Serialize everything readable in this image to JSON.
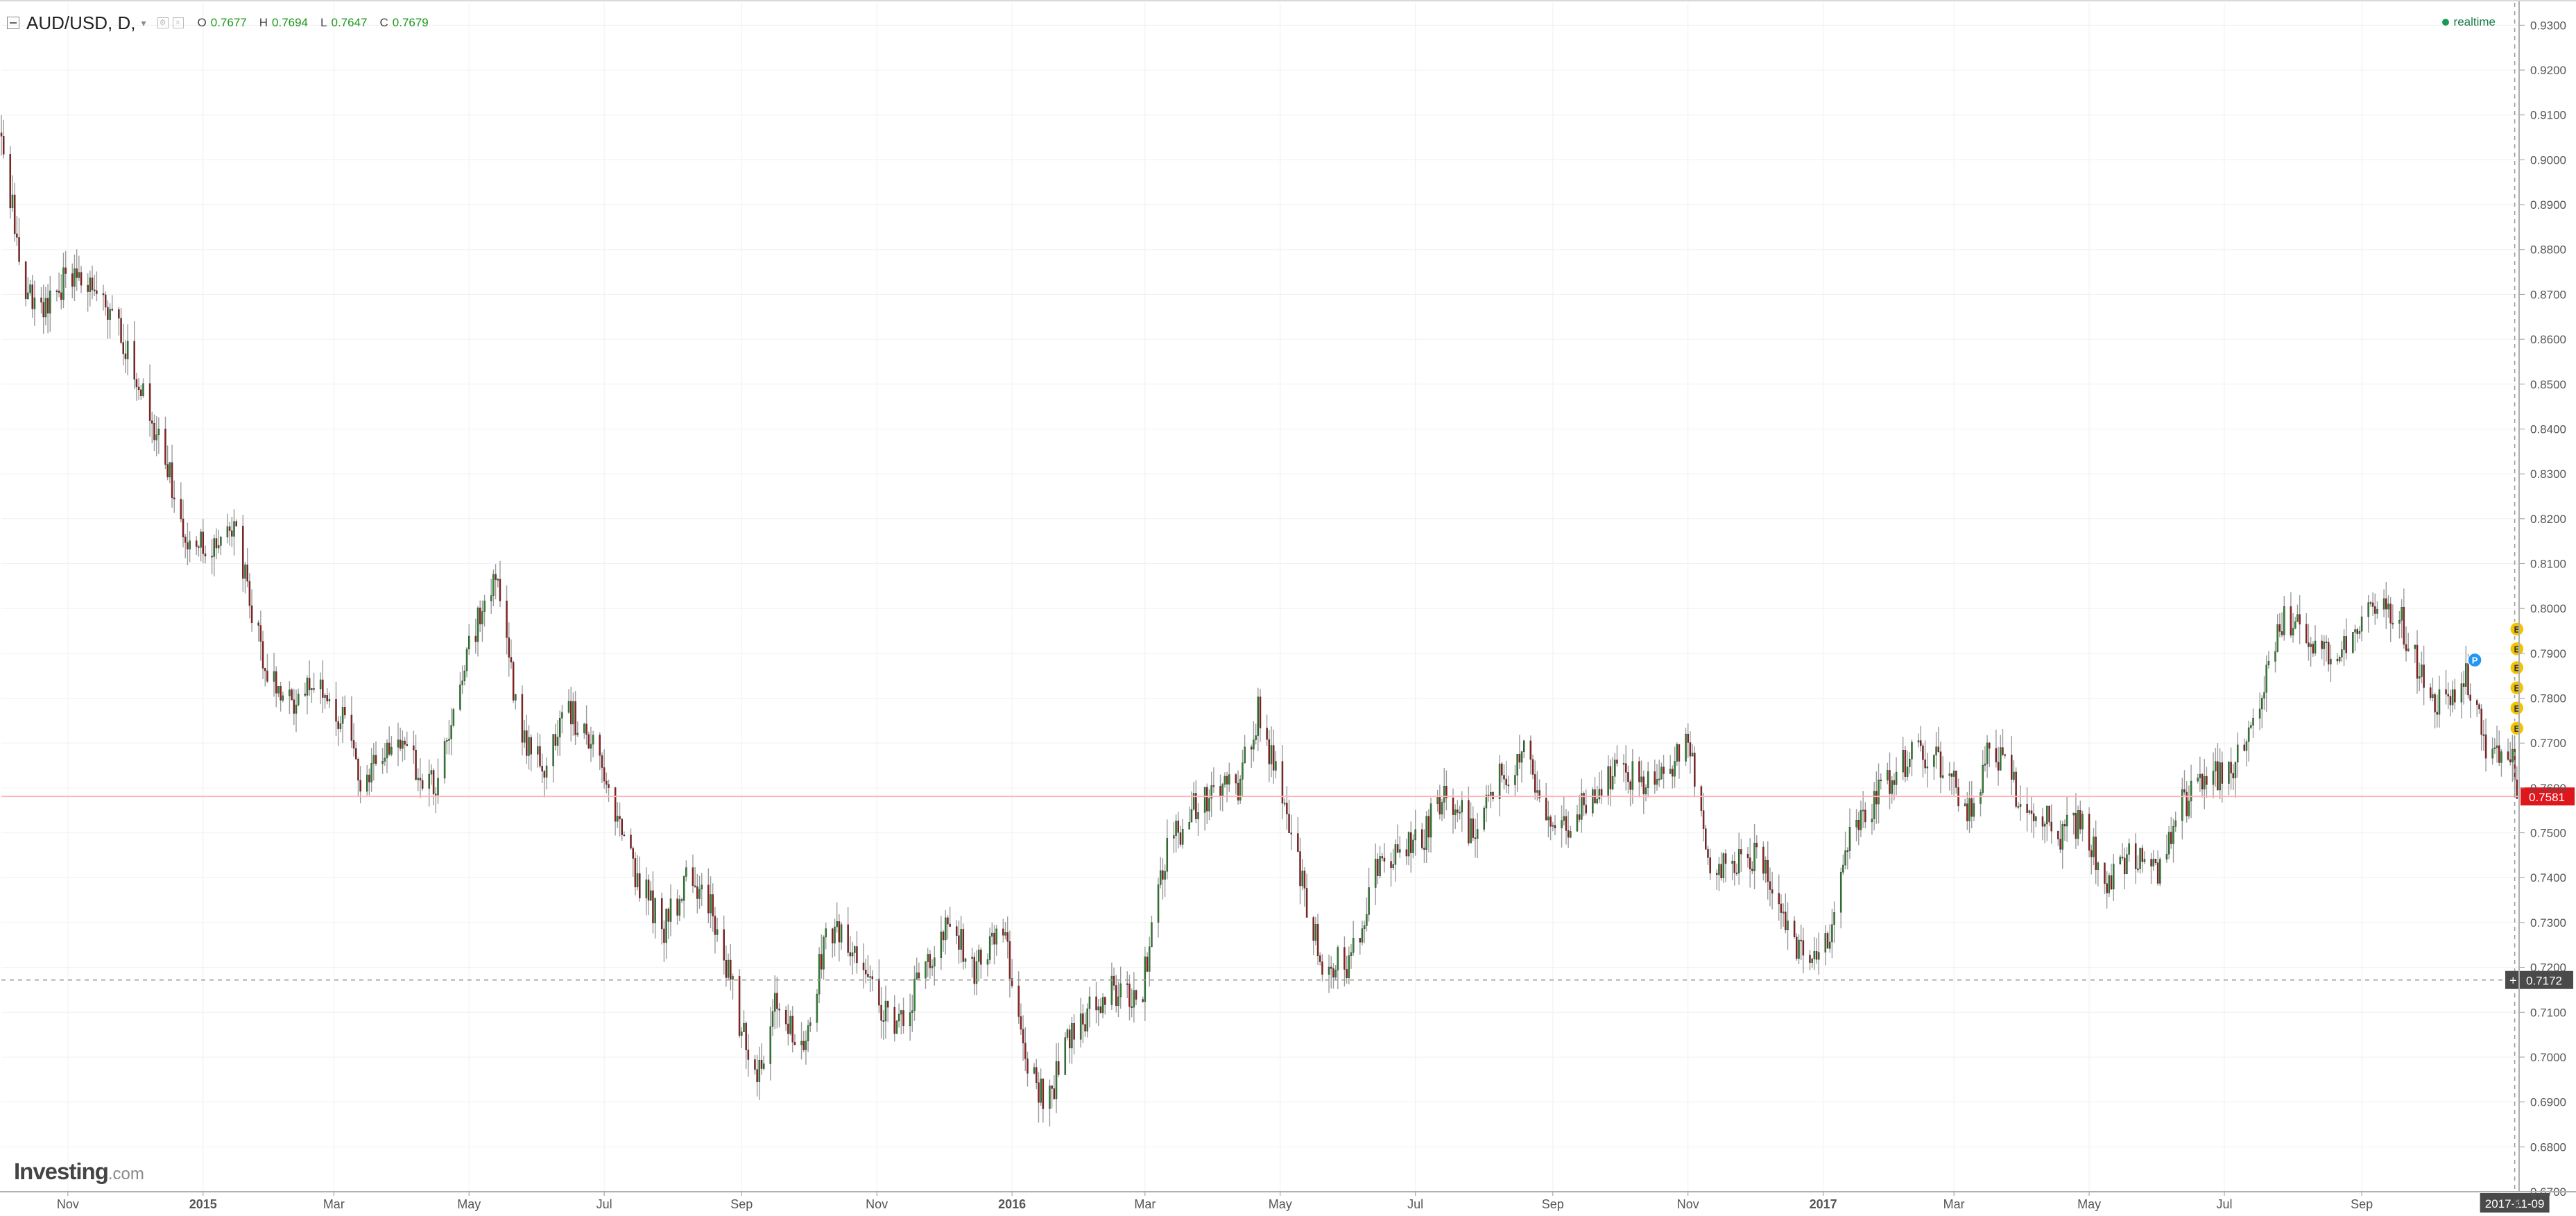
{
  "legend": {
    "symbol": "AUD/USD, D,",
    "dropdown_arrow": "▾",
    "open_key": "O",
    "open": "0.7677",
    "high_key": "H",
    "high": "0.7694",
    "low_key": "L",
    "low": "0.7647",
    "close_key": "C",
    "close": "0.7679"
  },
  "realtime_label": "realtime",
  "logo": {
    "brand": "Investing",
    "suffix": ".com"
  },
  "colors": {
    "up": "#2a8c2a",
    "down": "#a11818",
    "wick": "#9a9a9a",
    "grid": "#f0f0f0",
    "last_price_line": "#ffb3b3",
    "last_price_bg": "#e0161d",
    "crosshair_bg": "#4a4a4a",
    "earnings_badge": "#f2c300",
    "event_badge": "#2196f3"
  },
  "chart_data": {
    "type": "candlestick",
    "symbol": "AUD/USD",
    "interval": "D",
    "y_axis": {
      "range": [
        0.67,
        0.935
      ],
      "ticks": [
        "0.9300",
        "0.9200",
        "0.9100",
        "0.9000",
        "0.8900",
        "0.8800",
        "0.8700",
        "0.8600",
        "0.8500",
        "0.8400",
        "0.8300",
        "0.8200",
        "0.8100",
        "0.8000",
        "0.7900",
        "0.7800",
        "0.7700",
        "0.7600",
        "0.7500",
        "0.7400",
        "0.7300",
        "0.7200",
        "0.7100",
        "0.7000",
        "0.6900",
        "0.6800",
        "0.6700"
      ]
    },
    "x_axis": {
      "range": [
        "2014-10-02",
        "2017-11-11"
      ],
      "ticks": [
        {
          "date": "2014-11-01",
          "label": "Nov",
          "bold": false
        },
        {
          "date": "2015-01-01",
          "label": "2015",
          "bold": true
        },
        {
          "date": "2015-03-01",
          "label": "Mar",
          "bold": false
        },
        {
          "date": "2015-05-01",
          "label": "May",
          "bold": false
        },
        {
          "date": "2015-07-01",
          "label": "Jul",
          "bold": false
        },
        {
          "date": "2015-09-01",
          "label": "Sep",
          "bold": false
        },
        {
          "date": "2015-11-01",
          "label": "Nov",
          "bold": false
        },
        {
          "date": "2016-01-01",
          "label": "2016",
          "bold": true
        },
        {
          "date": "2016-03-01",
          "label": "Mar",
          "bold": false
        },
        {
          "date": "2016-05-01",
          "label": "May",
          "bold": false
        },
        {
          "date": "2016-07-01",
          "label": "Jul",
          "bold": false
        },
        {
          "date": "2016-09-01",
          "label": "Sep",
          "bold": false
        },
        {
          "date": "2016-11-01",
          "label": "Nov",
          "bold": false
        },
        {
          "date": "2017-01-01",
          "label": "2017",
          "bold": true
        },
        {
          "date": "2017-03-01",
          "label": "Mar",
          "bold": false
        },
        {
          "date": "2017-05-01",
          "label": "May",
          "bold": false
        },
        {
          "date": "2017-07-01",
          "label": "Jul",
          "bold": false
        },
        {
          "date": "2017-09-01",
          "label": "Sep",
          "bold": false
        }
      ],
      "trailing_tick": "8"
    },
    "price_path": [
      [
        "2014-10-02",
        0.906
      ],
      [
        "2014-10-12",
        0.873
      ],
      [
        "2014-10-22",
        0.866
      ],
      [
        "2014-11-02",
        0.875
      ],
      [
        "2014-11-12",
        0.87
      ],
      [
        "2014-11-22",
        0.866
      ],
      [
        "2014-12-02",
        0.852
      ],
      [
        "2014-12-12",
        0.838
      ],
      [
        "2014-12-25",
        0.815
      ],
      [
        "2015-01-05",
        0.814
      ],
      [
        "2015-01-15",
        0.82
      ],
      [
        "2015-01-25",
        0.795
      ],
      [
        "2015-02-05",
        0.778
      ],
      [
        "2015-02-15",
        0.781
      ],
      [
        "2015-02-25",
        0.782
      ],
      [
        "2015-03-05",
        0.775
      ],
      [
        "2015-03-15",
        0.76
      ],
      [
        "2015-03-25",
        0.771
      ],
      [
        "2015-04-05",
        0.766
      ],
      [
        "2015-04-15",
        0.76
      ],
      [
        "2015-04-25",
        0.779
      ],
      [
        "2015-05-05",
        0.798
      ],
      [
        "2015-05-14",
        0.806
      ],
      [
        "2015-05-25",
        0.77
      ],
      [
        "2015-06-05",
        0.765
      ],
      [
        "2015-06-15",
        0.777
      ],
      [
        "2015-06-25",
        0.77
      ],
      [
        "2015-07-05",
        0.755
      ],
      [
        "2015-07-15",
        0.741
      ],
      [
        "2015-07-28",
        0.729
      ],
      [
        "2015-08-08",
        0.74
      ],
      [
        "2015-08-18",
        0.735
      ],
      [
        "2015-09-01",
        0.706
      ],
      [
        "2015-09-08",
        0.697
      ],
      [
        "2015-09-18",
        0.714
      ],
      [
        "2015-09-28",
        0.7
      ],
      [
        "2015-10-10",
        0.73
      ],
      [
        "2015-10-20",
        0.725
      ],
      [
        "2015-11-01",
        0.713
      ],
      [
        "2015-11-10",
        0.705
      ],
      [
        "2015-11-22",
        0.72
      ],
      [
        "2015-12-05",
        0.73
      ],
      [
        "2015-12-15",
        0.72
      ],
      [
        "2015-12-28",
        0.73
      ],
      [
        "2016-01-07",
        0.7
      ],
      [
        "2016-01-17",
        0.689
      ],
      [
        "2016-01-27",
        0.705
      ],
      [
        "2016-02-07",
        0.712
      ],
      [
        "2016-02-17",
        0.715
      ],
      [
        "2016-02-28",
        0.713
      ],
      [
        "2016-03-10",
        0.745
      ],
      [
        "2016-03-22",
        0.755
      ],
      [
        "2016-04-02",
        0.76
      ],
      [
        "2016-04-12",
        0.76
      ],
      [
        "2016-04-21",
        0.777
      ],
      [
        "2016-05-01",
        0.76
      ],
      [
        "2016-05-10",
        0.74
      ],
      [
        "2016-05-20",
        0.722
      ],
      [
        "2016-06-01",
        0.72
      ],
      [
        "2016-06-12",
        0.74
      ],
      [
        "2016-06-24",
        0.745
      ],
      [
        "2016-07-05",
        0.75
      ],
      [
        "2016-07-15",
        0.76
      ],
      [
        "2016-07-26",
        0.75
      ],
      [
        "2016-08-08",
        0.762
      ],
      [
        "2016-08-18",
        0.768
      ],
      [
        "2016-08-30",
        0.755
      ],
      [
        "2016-09-10",
        0.752
      ],
      [
        "2016-09-20",
        0.76
      ],
      [
        "2016-10-01",
        0.765
      ],
      [
        "2016-10-12",
        0.76
      ],
      [
        "2016-10-22",
        0.762
      ],
      [
        "2016-11-01",
        0.77
      ],
      [
        "2016-11-10",
        0.745
      ],
      [
        "2016-11-20",
        0.742
      ],
      [
        "2016-12-01",
        0.745
      ],
      [
        "2016-12-12",
        0.735
      ],
      [
        "2016-12-24",
        0.72
      ],
      [
        "2017-01-03",
        0.725
      ],
      [
        "2017-01-13",
        0.75
      ],
      [
        "2017-01-25",
        0.758
      ],
      [
        "2017-02-05",
        0.765
      ],
      [
        "2017-02-15",
        0.768
      ],
      [
        "2017-02-25",
        0.765
      ],
      [
        "2017-03-08",
        0.755
      ],
      [
        "2017-03-18",
        0.77
      ],
      [
        "2017-03-28",
        0.76
      ],
      [
        "2017-04-08",
        0.755
      ],
      [
        "2017-04-18",
        0.75
      ],
      [
        "2017-04-28",
        0.752
      ],
      [
        "2017-05-09",
        0.738
      ],
      [
        "2017-05-20",
        0.745
      ],
      [
        "2017-06-01",
        0.74
      ],
      [
        "2017-06-12",
        0.756
      ],
      [
        "2017-06-24",
        0.762
      ],
      [
        "2017-07-05",
        0.765
      ],
      [
        "2017-07-15",
        0.775
      ],
      [
        "2017-07-27",
        0.797
      ],
      [
        "2017-08-06",
        0.795
      ],
      [
        "2017-08-16",
        0.79
      ],
      [
        "2017-08-26",
        0.793
      ],
      [
        "2017-09-07",
        0.8
      ],
      [
        "2017-09-18",
        0.798
      ],
      [
        "2017-09-28",
        0.785
      ],
      [
        "2017-10-08",
        0.777
      ],
      [
        "2017-10-18",
        0.785
      ],
      [
        "2017-10-28",
        0.768
      ],
      [
        "2017-11-08",
        0.765
      ],
      [
        "2017-11-11",
        0.7581
      ]
    ],
    "last_price": {
      "value": 0.7581,
      "label": "0.7581"
    },
    "crosshair": {
      "price": 0.7172,
      "price_label": "0.7172",
      "date": "2017-11-09",
      "date_label": "2017-11-09"
    },
    "events": [
      {
        "type": "earnings",
        "label": "E",
        "date": "2017-11-10",
        "price": 0.7954
      },
      {
        "type": "earnings",
        "label": "E",
        "date": "2017-11-10",
        "price": 0.791
      },
      {
        "type": "earnings",
        "label": "E",
        "date": "2017-11-10",
        "price": 0.7868
      },
      {
        "type": "earnings",
        "label": "E",
        "date": "2017-11-10",
        "price": 0.7823
      },
      {
        "type": "earnings",
        "label": "E",
        "date": "2017-11-10",
        "price": 0.7778
      },
      {
        "type": "earnings",
        "label": "E",
        "date": "2017-11-10",
        "price": 0.7733
      },
      {
        "type": "event",
        "label": "P",
        "date": "2017-10-22",
        "price": 0.7885
      }
    ]
  }
}
